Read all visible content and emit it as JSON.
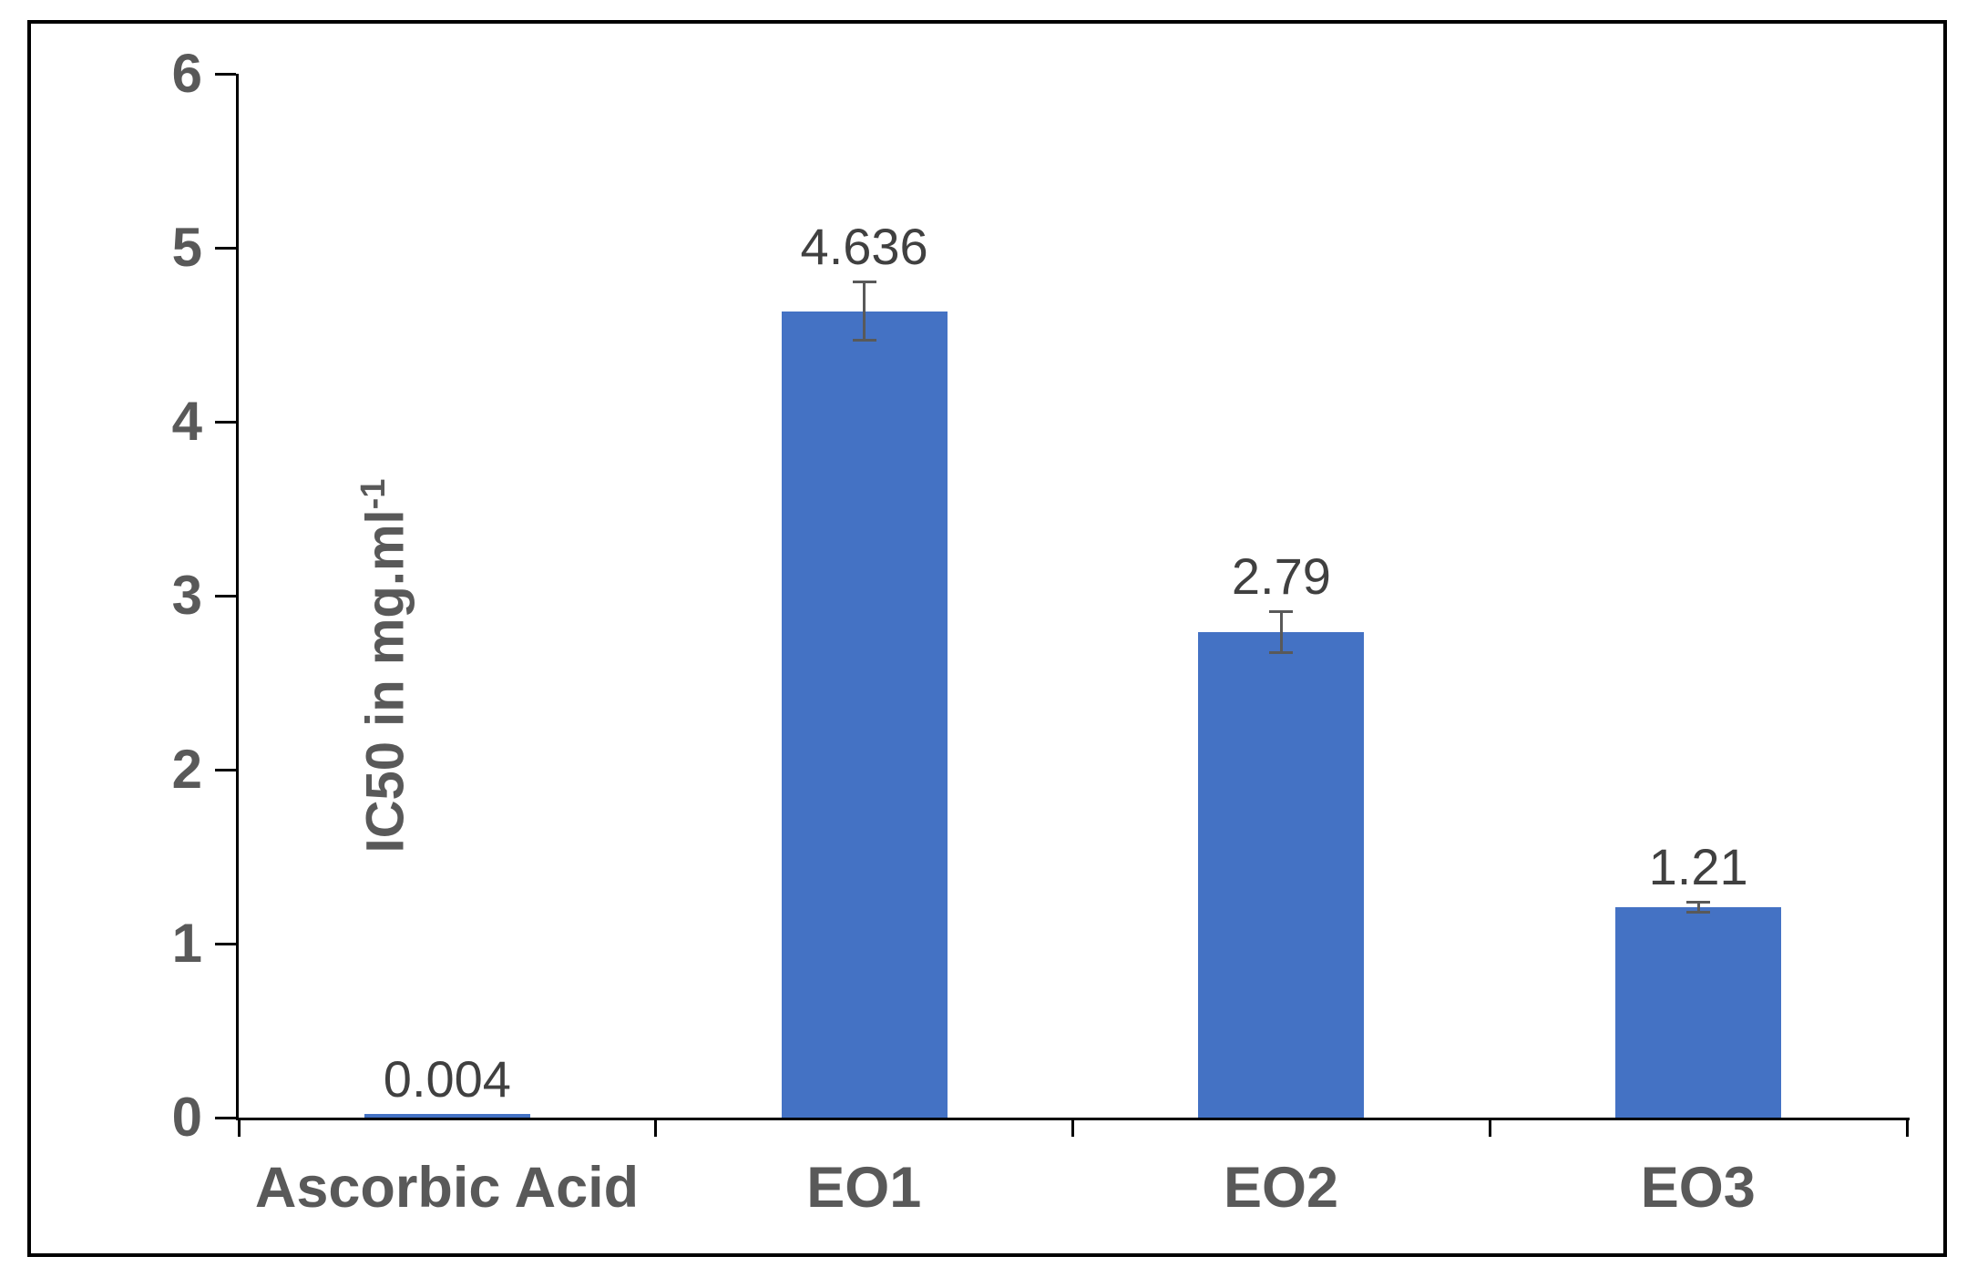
{
  "chart_data": {
    "type": "bar",
    "categories": [
      "Ascorbic Acid",
      "EO1",
      "EO2",
      "EO3"
    ],
    "values": [
      0.004,
      4.636,
      2.79,
      1.21
    ],
    "value_labels": [
      "0.004",
      "4.636",
      "2.79",
      "1.21"
    ],
    "errors": [
      0,
      0.17,
      0.12,
      0.03
    ],
    "title": "",
    "xlabel": "",
    "ylabel": "IC50 in mg.ml⁻¹",
    "ylabel_main": "IC50 in mg.ml",
    "ylabel_sup": "-1",
    "ylim": [
      0,
      6
    ],
    "yticks": [
      "0",
      "1",
      "2",
      "3",
      "4",
      "5",
      "6"
    ],
    "grid": false,
    "legend": null,
    "bar_color": "#4472C4",
    "axis_color": "#000000",
    "error_bar_color": "#595959",
    "tick_label_color": "#595959",
    "value_label_color": "#404040",
    "category_label_color": "#595959"
  }
}
